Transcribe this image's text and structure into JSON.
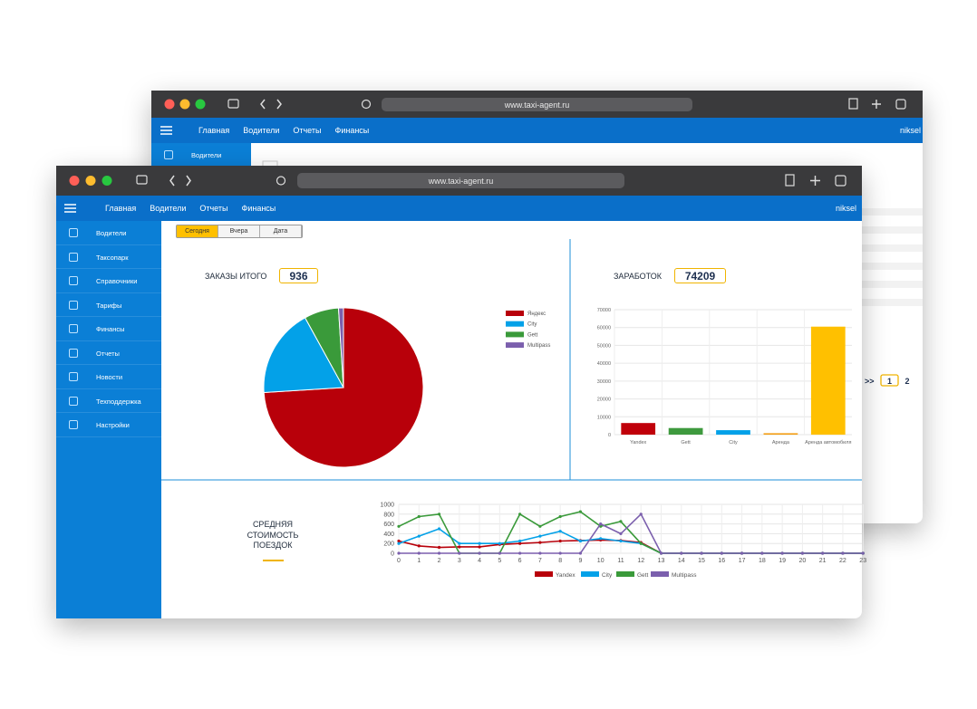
{
  "back_window": {
    "url": "www.taxi-agent.ru",
    "nav": [
      "Главная",
      "Водители",
      "Отчеты",
      "Финансы"
    ],
    "user": "niksel",
    "sidebar": [
      "Водители"
    ],
    "pagination": [
      ">>",
      "1",
      "2"
    ]
  },
  "front_window": {
    "url": "www.taxi-agent.ru",
    "nav": [
      "Главная",
      "Водители",
      "Отчеты",
      "Финансы"
    ],
    "user": "niksel",
    "sidebar": [
      "Водители",
      "Таксопарк",
      "Справочники",
      "Тарифы",
      "Финансы",
      "Отчеты",
      "Новости",
      "Техподдержка",
      "Настройки"
    ],
    "tabs": [
      "Сегодня",
      "Вчера",
      "Дата"
    ],
    "active_tab": 0,
    "orders": {
      "label": "ЗАКАЗЫ ИТОГО",
      "value": 936
    },
    "earnings": {
      "label": "ЗАРАБОТОК",
      "value": 74209
    },
    "avg_label": "СРЕДНЯЯ СТОИМОСТЬ ПОЕЗДОК"
  },
  "pie_chart": {
    "type": "pie",
    "categories": [
      "Яндекс",
      "City",
      "Gett",
      "Multipass"
    ],
    "values": [
      74,
      18,
      7,
      1
    ],
    "colors": [
      "#b8000a",
      "#03a1e8",
      "#3a9a3a",
      "#7b5fad"
    ]
  },
  "bar_chart": {
    "type": "bar",
    "categories": [
      "Yandex",
      "Gett",
      "City",
      "Аренда",
      "Аренда автомобиля"
    ],
    "values": [
      6500,
      3700,
      2500,
      800,
      60500
    ],
    "colors": [
      "#c0000a",
      "#3e9a3e",
      "#03a1e8",
      "#f39c12",
      "#ffc000"
    ],
    "ylim": [
      0,
      70000
    ],
    "yticks": [
      0,
      10000,
      20000,
      30000,
      40000,
      50000,
      60000,
      70000
    ],
    "grid": true
  },
  "line_chart": {
    "type": "line",
    "x": [
      0,
      1,
      2,
      3,
      4,
      5,
      6,
      7,
      8,
      9,
      10,
      11,
      12,
      13,
      14,
      15,
      16,
      17,
      18,
      19,
      20,
      21,
      22,
      23
    ],
    "xlim": [
      0,
      23
    ],
    "xticks": [
      0,
      1,
      2,
      3,
      4,
      5,
      6,
      7,
      8,
      9,
      10,
      11,
      12,
      13,
      14,
      15,
      16,
      17,
      18,
      19,
      20,
      21,
      22,
      23
    ],
    "ylim": [
      0,
      1000
    ],
    "yticks": [
      0,
      200,
      400,
      600,
      800,
      1000
    ],
    "grid": true,
    "series": [
      {
        "name": "Yandex",
        "color": "#b8000a",
        "values": [
          250,
          150,
          120,
          130,
          130,
          180,
          200,
          220,
          250,
          260,
          270,
          260,
          220,
          0,
          0,
          0,
          0,
          0,
          0,
          0,
          0,
          0,
          0,
          0
        ]
      },
      {
        "name": "City",
        "color": "#03a1e8",
        "values": [
          200,
          350,
          500,
          200,
          200,
          200,
          250,
          350,
          450,
          250,
          300,
          250,
          200,
          0,
          0,
          0,
          0,
          0,
          0,
          0,
          0,
          0,
          0,
          0
        ]
      },
      {
        "name": "Gett",
        "color": "#3a9a3a",
        "values": [
          550,
          750,
          800,
          0,
          0,
          0,
          800,
          550,
          750,
          850,
          550,
          650,
          200,
          0,
          0,
          0,
          0,
          0,
          0,
          0,
          0,
          0,
          0,
          0
        ]
      },
      {
        "name": "Multipass",
        "color": "#7b5fad",
        "values": [
          0,
          0,
          0,
          0,
          0,
          0,
          0,
          0,
          0,
          0,
          600,
          400,
          800,
          0,
          0,
          0,
          0,
          0,
          0,
          0,
          0,
          0,
          0,
          0
        ]
      }
    ]
  }
}
